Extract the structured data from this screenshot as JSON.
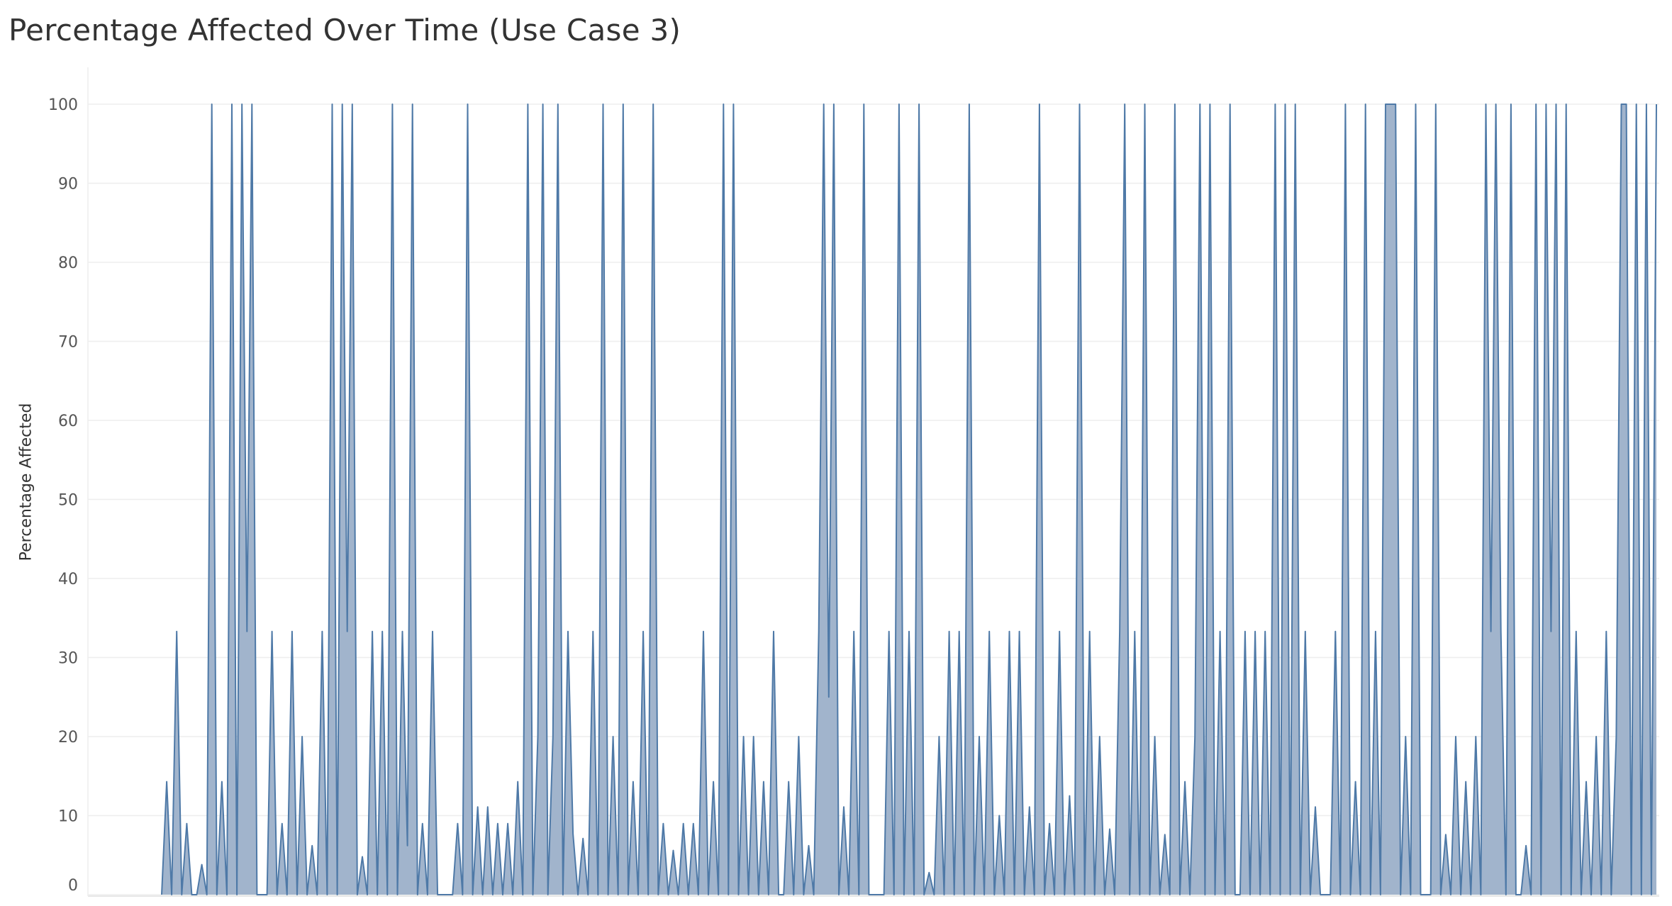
{
  "chart_data": {
    "type": "area",
    "title": "Percentage Affected Over Time (Use Case 3)",
    "ylabel": "Percentage Affected",
    "xlabel": "",
    "ylim": [
      0,
      100
    ],
    "yticks": [
      "0",
      "10",
      "20",
      "30",
      "40",
      "50",
      "60",
      "70",
      "80",
      "90",
      "100"
    ],
    "grid": true,
    "x_tick_labels_visible": false,
    "series": [
      {
        "color": "#4e79a7",
        "fill": "#9cb0c9",
        "values": [
          0,
          14.3,
          0,
          33.3,
          0,
          9,
          0,
          0,
          3.8,
          0,
          100,
          0,
          14.3,
          0,
          100,
          0,
          100,
          33.3,
          100,
          0,
          0,
          0,
          33.3,
          0,
          9,
          0,
          33.3,
          0,
          20,
          0,
          6.2,
          0,
          33.3,
          0,
          100,
          0,
          100,
          33.3,
          100,
          0,
          4.8,
          0,
          33.3,
          0,
          33.3,
          0,
          100,
          0,
          33.3,
          6.2,
          100,
          0,
          9,
          0,
          33.3,
          0,
          0,
          0,
          0,
          9,
          0,
          100,
          0,
          11.1,
          0,
          11.1,
          0,
          9,
          0,
          9,
          0,
          14.3,
          0,
          100,
          0,
          20,
          100,
          0,
          20,
          100,
          0,
          33.3,
          7.7,
          0,
          7.1,
          0,
          33.3,
          0,
          100,
          0,
          20,
          0,
          100,
          0,
          14.3,
          0,
          33.3,
          0,
          100,
          0,
          9,
          0,
          5.6,
          0,
          9,
          0,
          9,
          0,
          33.3,
          0,
          14.3,
          0,
          100,
          0,
          100,
          0,
          20,
          0,
          20,
          0,
          14.3,
          0,
          33.3,
          0,
          0,
          14.3,
          0,
          20,
          0,
          6.2,
          0,
          33.3,
          100,
          25,
          100,
          0,
          11.1,
          0,
          33.3,
          0,
          100,
          0,
          0,
          0,
          0,
          33.3,
          0,
          100,
          0,
          33.3,
          0,
          100,
          0,
          2.8,
          0,
          20,
          0,
          33.3,
          0,
          33.3,
          0,
          100,
          0,
          20,
          0,
          33.3,
          0,
          10,
          0,
          33.3,
          0,
          33.3,
          0,
          11.1,
          0,
          100,
          0,
          9,
          0,
          33.3,
          0,
          12.5,
          0,
          100,
          0,
          33.3,
          0,
          20,
          0,
          8.3,
          0,
          33.3,
          100,
          0,
          33.3,
          0,
          100,
          0,
          20,
          0,
          7.6,
          0,
          100,
          0,
          14.3,
          0,
          20,
          100,
          0,
          100,
          0,
          33.3,
          0,
          100,
          0,
          0,
          33.3,
          0,
          33.3,
          0,
          33.3,
          0,
          100,
          0,
          100,
          0,
          100,
          0,
          33.3,
          0,
          11.1,
          0,
          0,
          0,
          33.3,
          0,
          100,
          0,
          14.3,
          0,
          100,
          0,
          33.3,
          0,
          100,
          100,
          100,
          0,
          20,
          0,
          100,
          0,
          0,
          0,
          100,
          0,
          7.6,
          0,
          20,
          0,
          14.3,
          0,
          20,
          0,
          100,
          33.3,
          100,
          33.3,
          0,
          100,
          0,
          0,
          6.2,
          0,
          100,
          0,
          100,
          33.3,
          100,
          0,
          100,
          0,
          33.3,
          0,
          14.3,
          0,
          20,
          0,
          33.3,
          0,
          20,
          100,
          100,
          0,
          100,
          0,
          100,
          0,
          100
        ]
      }
    ]
  }
}
